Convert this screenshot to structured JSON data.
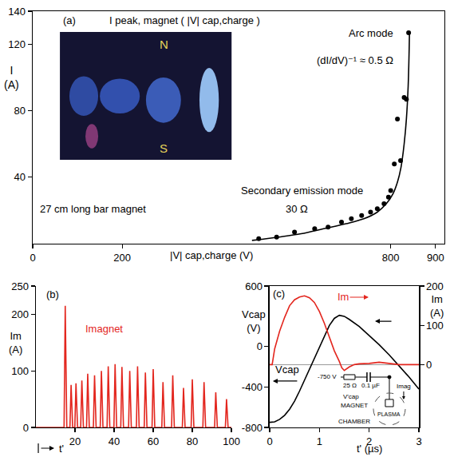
{
  "chart_data": [
    {
      "type": "scatter",
      "panel": "(a)",
      "title": "I peak, magnet ( |V| cap,charge )",
      "xlabel": "|V| cap,charge (V)",
      "ylabel": "I (A)",
      "xlim": [
        0,
        920
      ],
      "xticks": [
        0,
        200,
        800,
        900
      ],
      "ylim": [
        0,
        140
      ],
      "yticks": [
        40,
        80,
        120,
        140
      ],
      "grid": false,
      "series": [
        {
          "type": "scatter",
          "marker": "circle",
          "color": "#000000",
          "x": [
            505,
            545,
            585,
            630,
            660,
            690,
            712,
            735,
            755,
            770,
            785,
            795,
            800,
            808,
            815,
            822,
            830,
            835,
            840
          ],
          "values": [
            3,
            4,
            7,
            9,
            10,
            13,
            15,
            17,
            19,
            21,
            24,
            28,
            32,
            48,
            75,
            50,
            88,
            87,
            127
          ]
        },
        {
          "type": "line",
          "line_style": "solid",
          "color": "#000000",
          "x": [
            490,
            550,
            600,
            650,
            700,
            740,
            770,
            790,
            805,
            815,
            823,
            830,
            835,
            839,
            842
          ],
          "values": [
            2,
            4,
            6,
            9,
            12,
            15,
            19,
            24,
            30,
            37,
            46,
            60,
            75,
            95,
            128
          ]
        }
      ],
      "annotations": [
        "Arc mode",
        "(dI/dV)⁻¹ ≈ 0.5 Ω",
        "Secondary emission mode",
        "30 Ω",
        "27 cm long bar magnet",
        "N",
        "S"
      ]
    },
    {
      "type": "line",
      "panel": "(b)",
      "xlabel": "t'",
      "ylabel": "Im (A)",
      "xlim": [
        0,
        100
      ],
      "xticks": [
        20,
        40,
        60,
        80,
        100
      ],
      "ylim": [
        0,
        250
      ],
      "yticks": [
        0,
        100,
        200,
        250
      ],
      "grid": false,
      "series": [
        {
          "name": "Imagnet",
          "color": "#e3261e",
          "line_style": "solid",
          "x": [
            0,
            14.4,
            15,
            15.8,
            17.4,
            18,
            18.8,
            19.9,
            20.5,
            21.3,
            22.9,
            23.5,
            24.3,
            25.9,
            26.5,
            27.3,
            29.4,
            30,
            30.8,
            32.9,
            33.5,
            34.3,
            36.4,
            37,
            37.8,
            39.9,
            40.5,
            41.3,
            43.4,
            44,
            44.8,
            47.4,
            48,
            48.8,
            51.4,
            52,
            52.8,
            55.4,
            56,
            56.8,
            59.4,
            60,
            60.8,
            64.4,
            65,
            65.8,
            69.4,
            70,
            70.8,
            74.9,
            75.5,
            76.3,
            79.4,
            80,
            80.8,
            85.4,
            86,
            86.8,
            91.4,
            92,
            92.8,
            96.9,
            97.5,
            98.3,
            100
          ],
          "values": [
            0,
            0,
            215,
            0,
            0,
            75,
            0,
            0,
            78,
            0,
            0,
            83,
            0,
            0,
            95,
            0,
            0,
            92,
            0,
            0,
            100,
            0,
            0,
            108,
            0,
            0,
            112,
            0,
            0,
            107,
            0,
            0,
            100,
            0,
            0,
            108,
            0,
            0,
            97,
            0,
            0,
            103,
            0,
            0,
            80,
            0,
            0,
            92,
            0,
            0,
            70,
            0,
            0,
            85,
            0,
            0,
            80,
            0,
            0,
            62,
            0,
            0,
            50,
            0,
            0
          ]
        }
      ]
    },
    {
      "type": "line",
      "panel": "(c)",
      "xlabel": "t' (µs)",
      "ylabel": "Vcap (V)",
      "y2label": "Im (A)",
      "xlim": [
        0,
        3
      ],
      "xticks": [
        0,
        1,
        2,
        3
      ],
      "ylim": [
        -800,
        600
      ],
      "yticks": [
        -800,
        -400,
        0,
        600
      ],
      "y2lim": [
        -160,
        200
      ],
      "y2ticks": [
        0,
        100,
        200
      ],
      "grid": false,
      "series": [
        {
          "name": "Im",
          "color": "#e3261e",
          "axis": "y2",
          "line_style": "solid",
          "x": [
            0,
            0.05,
            0.1,
            0.2,
            0.3,
            0.4,
            0.5,
            0.6,
            0.7,
            0.8,
            0.9,
            1.0,
            1.1,
            1.2,
            1.3,
            1.4,
            1.45,
            1.5,
            1.6,
            1.7,
            1.8,
            2.0,
            2.2,
            2.4,
            2.6,
            3.0
          ],
          "values": [
            0,
            0,
            40,
            85,
            120,
            150,
            165,
            172,
            175,
            170,
            158,
            135,
            105,
            70,
            35,
            8,
            -8,
            -15,
            -6,
            0,
            2,
            3,
            6,
            3,
            0,
            0
          ]
        },
        {
          "name": "Vcap",
          "color": "#000000",
          "line_style": "solid",
          "x": [
            0,
            0.1,
            0.2,
            0.3,
            0.4,
            0.5,
            0.6,
            0.7,
            0.8,
            0.9,
            1.0,
            1.1,
            1.2,
            1.3,
            1.4,
            1.5,
            1.6,
            1.8,
            2.0,
            2.2,
            2.4,
            2.6,
            2.8,
            3.0
          ],
          "values": [
            -750,
            -745,
            -720,
            -680,
            -620,
            -540,
            -440,
            -330,
            -220,
            -110,
            0,
            110,
            210,
            280,
            310,
            300,
            270,
            200,
            110,
            20,
            -80,
            -190,
            -300,
            -420
          ]
        }
      ],
      "annotations": [
        "-750 V",
        "25 Ω",
        "0.1 µF",
        "Imag",
        "V'cap",
        "PLASMA",
        "MAGNET",
        "CHAMBER"
      ]
    }
  ]
}
